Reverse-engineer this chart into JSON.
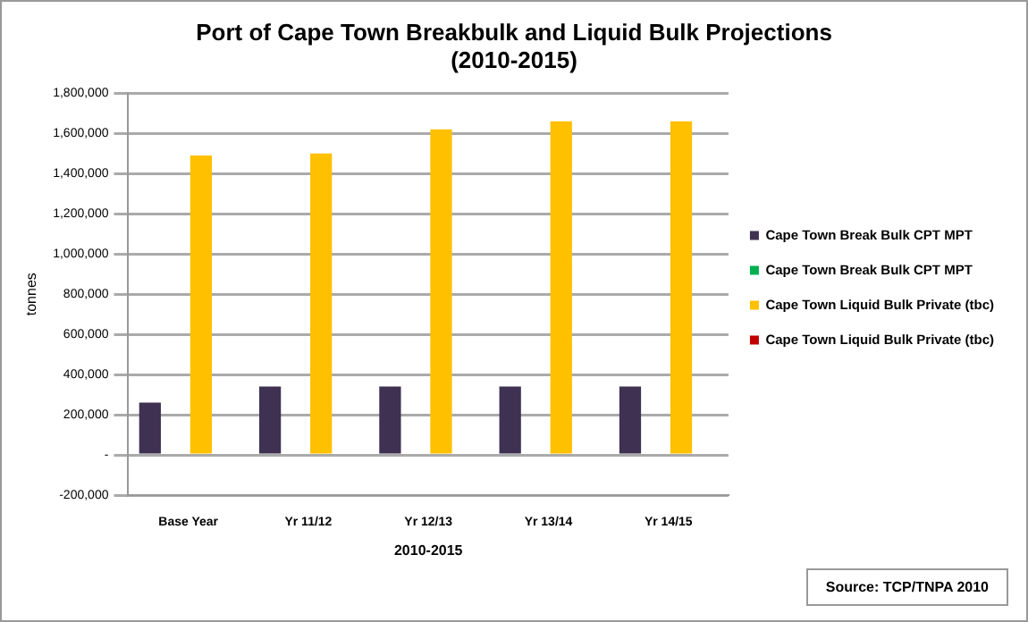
{
  "chart_data": {
    "type": "bar",
    "title": "Port of Cape Town Breakbulk and Liquid Bulk Projections\n(2010-2015)",
    "xlabel": "2010-2015",
    "ylabel": "tonnes",
    "categories": [
      "Base Year",
      "Yr 11/12",
      "Yr 12/13",
      "Yr 13/14",
      "Yr 14/15"
    ],
    "series": [
      {
        "name": "Cape Town Break Bulk CPT MPT",
        "color": "#3f3151",
        "values": [
          260000,
          340000,
          340000,
          340000,
          340000
        ]
      },
      {
        "name": "Cape Town Break Bulk CPT MPT",
        "color": "#00b050",
        "values": [
          0,
          0,
          0,
          0,
          0
        ]
      },
      {
        "name": "Cape Town Liquid Bulk Private (tbc)",
        "color": "#ffc000",
        "values": [
          1490000,
          1500000,
          1620000,
          1660000,
          1660000
        ]
      },
      {
        "name": "Cape Town Liquid Bulk Private (tbc)",
        "color": "#c00000",
        "values": [
          0,
          0,
          0,
          0,
          0
        ]
      }
    ],
    "ylim": [
      -200000,
      1800000
    ],
    "yticks": [
      {
        "value": -200000,
        "label": "-200,000"
      },
      {
        "value": 0,
        "label": "-"
      },
      {
        "value": 200000,
        "label": "200,000"
      },
      {
        "value": 400000,
        "label": "400,000"
      },
      {
        "value": 600000,
        "label": "600,000"
      },
      {
        "value": 800000,
        "label": "800,000"
      },
      {
        "value": 1000000,
        "label": "1,000,000"
      },
      {
        "value": 1200000,
        "label": "1,200,000"
      },
      {
        "value": 1400000,
        "label": "1,400,000"
      },
      {
        "value": 1600000,
        "label": "1,600,000"
      },
      {
        "value": 1800000,
        "label": "1,800,000"
      }
    ],
    "grid": "y",
    "legend": "right",
    "annotations": [
      "Source: TCP/TNPA 2010"
    ]
  }
}
